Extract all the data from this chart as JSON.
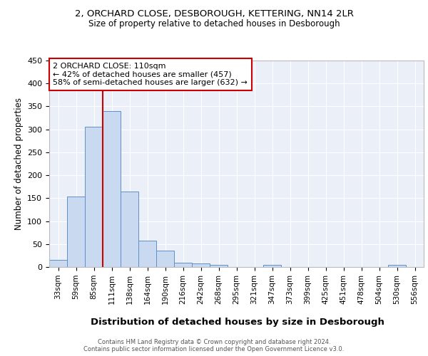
{
  "title1": "2, ORCHARD CLOSE, DESBOROUGH, KETTERING, NN14 2LR",
  "title2": "Size of property relative to detached houses in Desborough",
  "xlabel": "Distribution of detached houses by size in Desborough",
  "ylabel": "Number of detached properties",
  "bin_labels": [
    "33sqm",
    "59sqm",
    "85sqm",
    "111sqm",
    "138sqm",
    "164sqm",
    "190sqm",
    "216sqm",
    "242sqm",
    "268sqm",
    "295sqm",
    "321sqm",
    "347sqm",
    "373sqm",
    "399sqm",
    "425sqm",
    "451sqm",
    "478sqm",
    "504sqm",
    "530sqm",
    "556sqm"
  ],
  "bar_heights": [
    16,
    153,
    305,
    340,
    165,
    57,
    35,
    10,
    7,
    5,
    0,
    0,
    4,
    0,
    0,
    0,
    0,
    0,
    0,
    4,
    0
  ],
  "bar_color": "#c9d9f0",
  "bar_edge_color": "#6090c8",
  "background_color": "#eaeff8",
  "grid_color": "#ffffff",
  "red_line_x": 3,
  "annotation_text": "2 ORCHARD CLOSE: 110sqm\n← 42% of detached houses are smaller (457)\n58% of semi-detached houses are larger (632) →",
  "annotation_box_color": "#ffffff",
  "annotation_box_edge": "#cc0000",
  "red_line_color": "#cc0000",
  "footer_text": "Contains HM Land Registry data © Crown copyright and database right 2024.\nContains public sector information licensed under the Open Government Licence v3.0.",
  "ylim": [
    0,
    450
  ],
  "yticks": [
    0,
    50,
    100,
    150,
    200,
    250,
    300,
    350,
    400,
    450
  ]
}
